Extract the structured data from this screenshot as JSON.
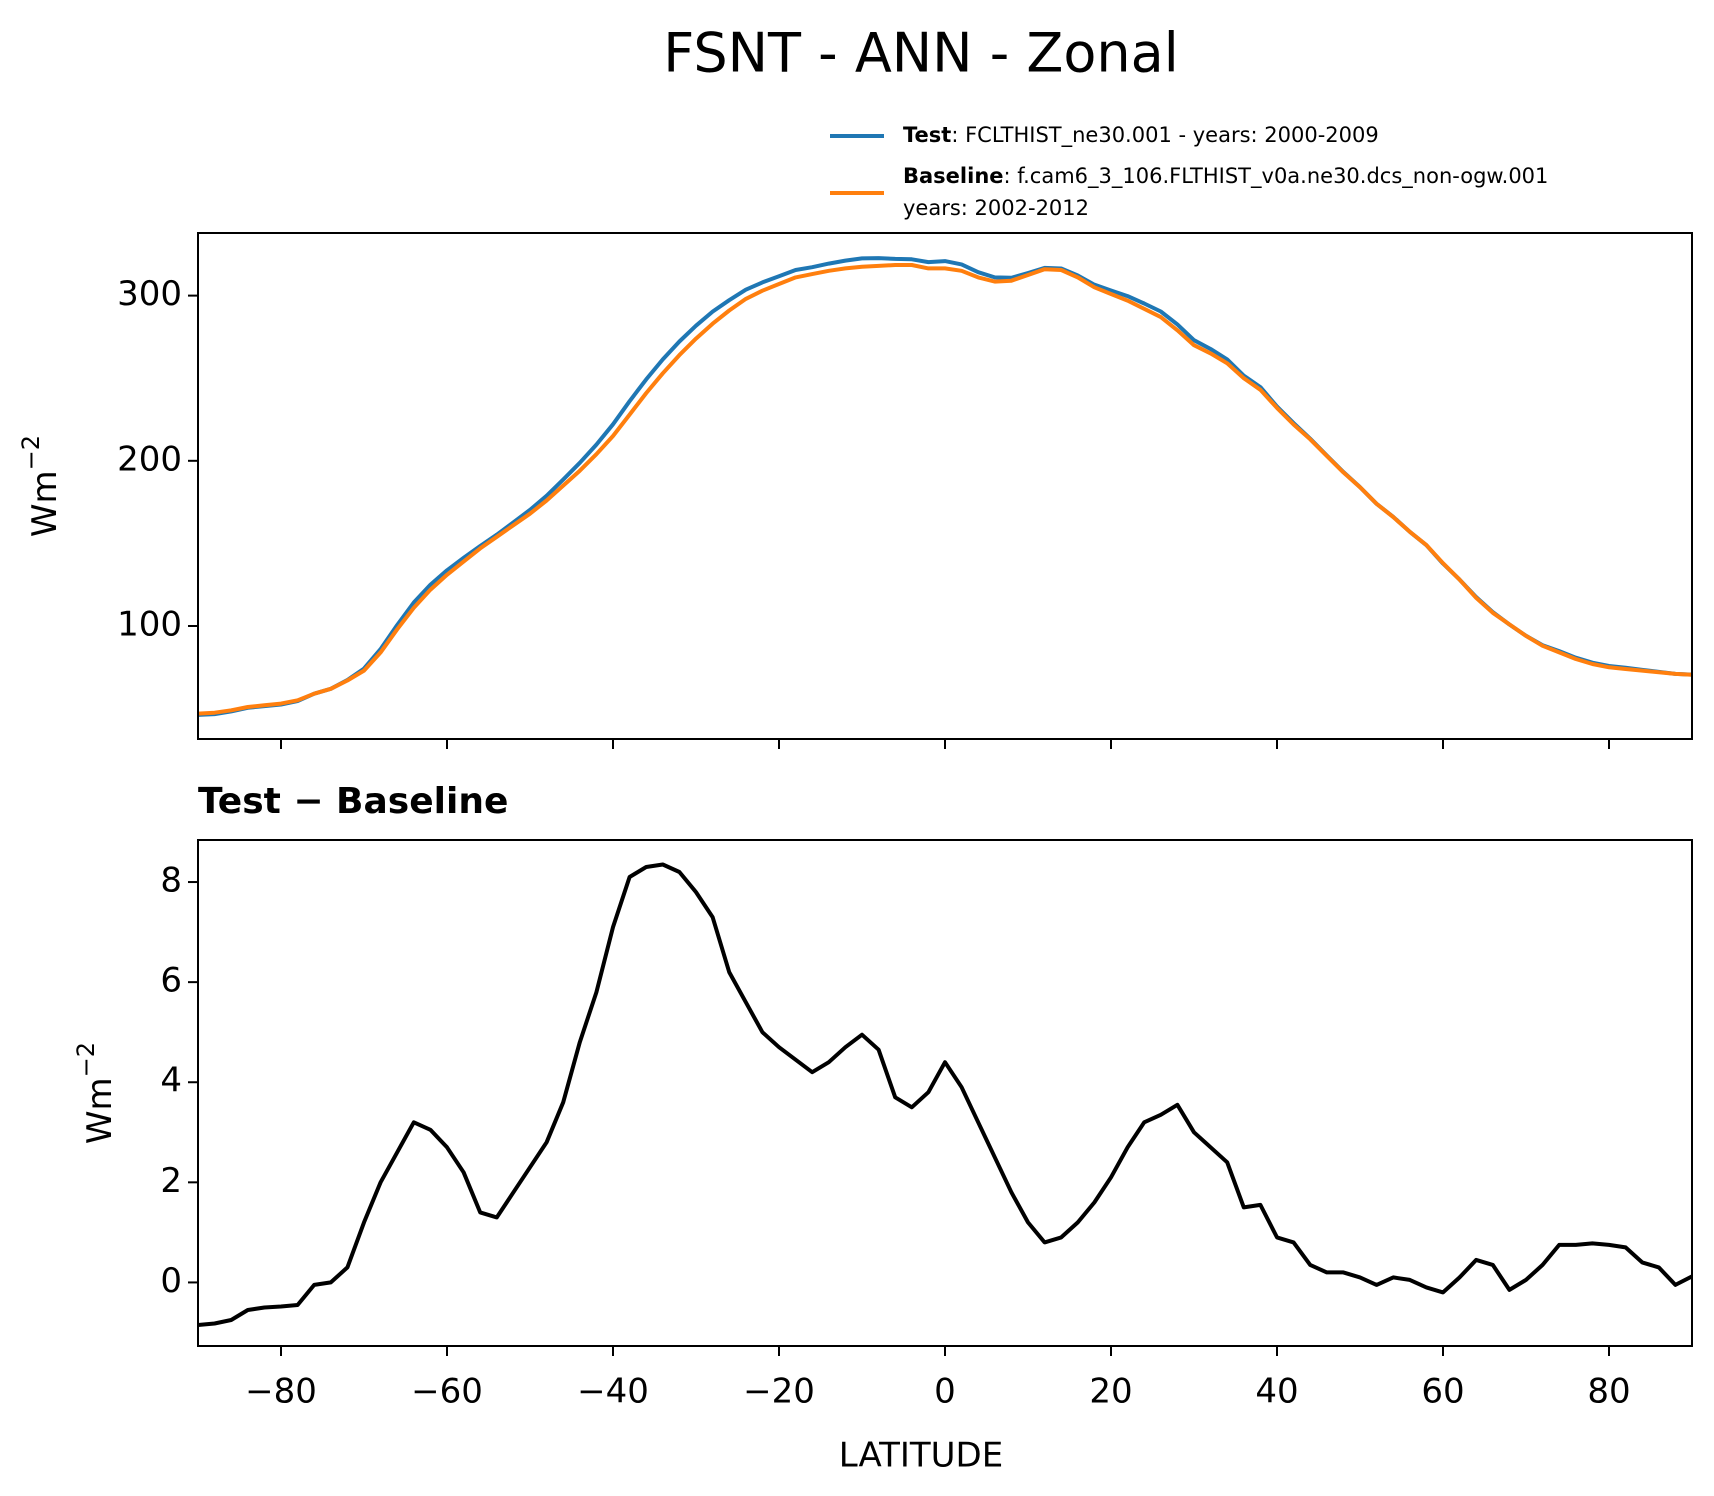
{
  "chart_data": [
    {
      "type": "line",
      "title": "FSNT - ANN - Zonal",
      "ylabel": {
        "text": "Wm",
        "superscript": "−2"
      },
      "x": [
        -90,
        -88,
        -86,
        -84,
        -82,
        -80,
        -78,
        -76,
        -74,
        -72,
        -70,
        -68,
        -66,
        -64,
        -62,
        -60,
        -58,
        -56,
        -54,
        -52,
        -50,
        -48,
        -46,
        -44,
        -42,
        -40,
        -38,
        -36,
        -34,
        -32,
        -30,
        -28,
        -26,
        -24,
        -22,
        -20,
        -18,
        -16,
        -14,
        -12,
        -10,
        -8,
        -6,
        -4,
        -2,
        0,
        2,
        4,
        6,
        8,
        10,
        12,
        14,
        16,
        18,
        20,
        22,
        24,
        26,
        28,
        30,
        32,
        34,
        36,
        38,
        40,
        42,
        44,
        46,
        48,
        50,
        52,
        54,
        56,
        58,
        60,
        62,
        64,
        66,
        68,
        70,
        72,
        74,
        76,
        78,
        80,
        82,
        84,
        86,
        88,
        90
      ],
      "series": [
        {
          "name": "Test",
          "color": "#1f77b4",
          "legend_detail": [
            ": FCLTHIST_ne30.001 - years: 2000-2009"
          ],
          "values": [
            46.2,
            46.7,
            48.3,
            50.5,
            51.5,
            52.5,
            54.6,
            59,
            62,
            67.3,
            74.2,
            86,
            100.6,
            114.2,
            125,
            133.7,
            141.2,
            148.4,
            155.3,
            162.8,
            170.3,
            178.8,
            188.6,
            198.8,
            209.8,
            222.1,
            236.1,
            249.3,
            261.4,
            272.2,
            281.8,
            290.3,
            297.2,
            303.6,
            308,
            311.7,
            315.5,
            317.2,
            319.4,
            321.2,
            322.5,
            322.7,
            322.2,
            322,
            320.3,
            320.9,
            318.9,
            314.2,
            311,
            310.8,
            313.7,
            316.8,
            316.4,
            312.2,
            306.6,
            303.1,
            299.7,
            295.2,
            290.4,
            282.6,
            273,
            267.7,
            261.4,
            251.5,
            244.6,
            232.9,
            222.8,
            213.4,
            203.2,
            193.2,
            184.1,
            174,
            166.1,
            157,
            148.9,
            137.8,
            128.1,
            117.5,
            108.4,
            100.9,
            94.1,
            88.4,
            84.8,
            80.8,
            77.8,
            75.8,
            74.7,
            73.4,
            72.3,
            71,
            70.6
          ]
        },
        {
          "name": "Baseline",
          "color": "#ff7f0e",
          "legend_detail": [
            ": f.cam6_3_106.FLTHIST_v0a.ne30.dcs_non-ogw.001",
            "years: 2002-2012"
          ],
          "values": [
            47,
            47.5,
            49,
            51,
            52,
            53,
            55,
            59,
            62,
            67,
            73,
            84,
            98,
            111,
            122,
            131,
            139,
            147,
            154,
            161,
            168,
            176,
            185,
            194,
            204,
            215,
            228,
            241,
            253,
            264,
            274,
            283,
            291,
            298,
            303,
            307,
            311,
            313,
            315,
            316.5,
            317.5,
            318,
            318.5,
            318.5,
            316.5,
            316.5,
            315,
            311,
            308.5,
            309,
            312.5,
            316,
            315.5,
            311,
            305,
            301,
            297,
            292,
            287,
            279,
            270,
            265,
            259,
            250,
            243,
            232,
            222,
            213,
            203,
            193,
            184,
            174,
            166,
            157,
            149,
            138,
            128,
            117,
            108,
            101,
            94,
            88,
            84,
            80,
            77,
            75,
            74,
            73,
            72,
            71,
            70.5
          ]
        }
      ],
      "xlim": [
        -90,
        90
      ],
      "xticks": [
        -80,
        -60,
        -40,
        -20,
        0,
        20,
        40,
        60,
        80
      ],
      "ylim": [
        31.6,
        337.9
      ],
      "yticks": [
        100,
        200,
        300
      ]
    },
    {
      "type": "line",
      "title": "Test − Baseline",
      "xlabel": "LATITUDE",
      "ylabel": {
        "text": "Wm",
        "superscript": "−2"
      },
      "x": [
        -90,
        -88,
        -86,
        -84,
        -82,
        -80,
        -78,
        -76,
        -74,
        -72,
        -70,
        -68,
        -66,
        -64,
        -62,
        -60,
        -58,
        -56,
        -54,
        -52,
        -50,
        -48,
        -46,
        -44,
        -42,
        -40,
        -38,
        -36,
        -34,
        -32,
        -30,
        -28,
        -26,
        -24,
        -22,
        -20,
        -18,
        -16,
        -14,
        -12,
        -10,
        -8,
        -6,
        -4,
        -2,
        0,
        2,
        4,
        6,
        8,
        10,
        12,
        14,
        16,
        18,
        20,
        22,
        24,
        26,
        28,
        30,
        32,
        34,
        36,
        38,
        40,
        42,
        44,
        46,
        48,
        50,
        52,
        54,
        56,
        58,
        60,
        62,
        64,
        66,
        68,
        70,
        72,
        74,
        76,
        78,
        80,
        82,
        84,
        86,
        88,
        90
      ],
      "color": "#000000",
      "values": [
        -0.85,
        -0.82,
        -0.75,
        -0.55,
        -0.5,
        -0.48,
        -0.45,
        -0.05,
        0,
        0.3,
        1.2,
        2,
        2.6,
        3.2,
        3.05,
        2.7,
        2.2,
        1.4,
        1.3,
        1.8,
        2.3,
        2.8,
        3.6,
        4.8,
        5.8,
        7.1,
        8.1,
        8.3,
        8.35,
        8.2,
        7.8,
        7.3,
        6.2,
        5.6,
        5,
        4.7,
        4.45,
        4.2,
        4.4,
        4.7,
        4.95,
        4.65,
        3.7,
        3.5,
        3.8,
        4.4,
        3.9,
        3.2,
        2.5,
        1.8,
        1.2,
        0.8,
        0.9,
        1.2,
        1.6,
        2.1,
        2.7,
        3.2,
        3.35,
        3.55,
        3,
        2.7,
        2.4,
        1.5,
        1.55,
        0.9,
        0.8,
        0.35,
        0.2,
        0.2,
        0.1,
        -0.05,
        0.1,
        0.05,
        -0.1,
        -0.2,
        0.1,
        0.45,
        0.35,
        -0.15,
        0.05,
        0.35,
        0.75,
        0.75,
        0.78,
        0.75,
        0.7,
        0.4,
        0.3,
        -0.05,
        0.12
      ],
      "xlim": [
        -90,
        90
      ],
      "xticks": [
        {
          "value": -80,
          "label": "−80"
        },
        {
          "value": -60,
          "label": "−60"
        },
        {
          "value": -40,
          "label": "−40"
        },
        {
          "value": -20,
          "label": "−20"
        },
        0,
        20,
        40,
        60,
        80
      ],
      "ylim": [
        -1.27,
        8.84
      ],
      "yticks": [
        0,
        2,
        4,
        6,
        8
      ]
    }
  ]
}
